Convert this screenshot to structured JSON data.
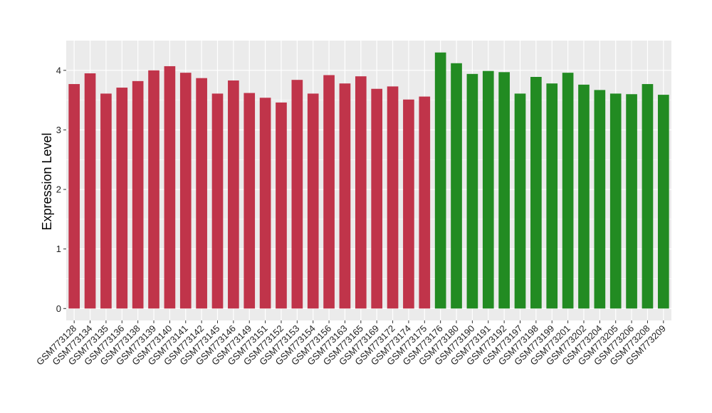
{
  "chart_data": {
    "type": "bar",
    "title": "",
    "xlabel": "",
    "ylabel": "Expression Level",
    "ylim": [
      -0.2,
      4.5
    ],
    "yticks": [
      0,
      1,
      2,
      3,
      4
    ],
    "grid": true,
    "legend": "none",
    "colors": {
      "group1": "#c0344a",
      "group2": "#228b22",
      "panel": "#ebebeb",
      "grid": "#ffffff"
    },
    "categories": [
      "GSM773128",
      "GSM773134",
      "GSM773135",
      "GSM773136",
      "GSM773138",
      "GSM773139",
      "GSM773140",
      "GSM773141",
      "GSM773142",
      "GSM773145",
      "GSM773146",
      "GSM773149",
      "GSM773151",
      "GSM773152",
      "GSM773153",
      "GSM773154",
      "GSM773156",
      "GSM773163",
      "GSM773165",
      "GSM773169",
      "GSM773172",
      "GSM773174",
      "GSM773175",
      "GSM773176",
      "GSM773180",
      "GSM773190",
      "GSM773191",
      "GSM773192",
      "GSM773197",
      "GSM773198",
      "GSM773199",
      "GSM773201",
      "GSM773202",
      "GSM773204",
      "GSM773205",
      "GSM773206",
      "GSM773208",
      "GSM773209"
    ],
    "values": [
      3.77,
      3.95,
      3.61,
      3.71,
      3.82,
      4.0,
      4.07,
      3.96,
      3.87,
      3.61,
      3.83,
      3.62,
      3.54,
      3.46,
      3.84,
      3.61,
      3.92,
      3.78,
      3.9,
      3.69,
      3.73,
      3.51,
      3.56,
      4.3,
      4.12,
      3.94,
      3.99,
      3.97,
      3.61,
      3.89,
      3.78,
      3.96,
      3.76,
      3.67,
      3.61,
      3.6,
      3.77,
      3.59
    ],
    "groups": [
      1,
      1,
      1,
      1,
      1,
      1,
      1,
      1,
      1,
      1,
      1,
      1,
      1,
      1,
      1,
      1,
      1,
      1,
      1,
      1,
      1,
      1,
      1,
      2,
      2,
      2,
      2,
      2,
      2,
      2,
      2,
      2,
      2,
      2,
      2,
      2,
      2,
      2
    ]
  }
}
